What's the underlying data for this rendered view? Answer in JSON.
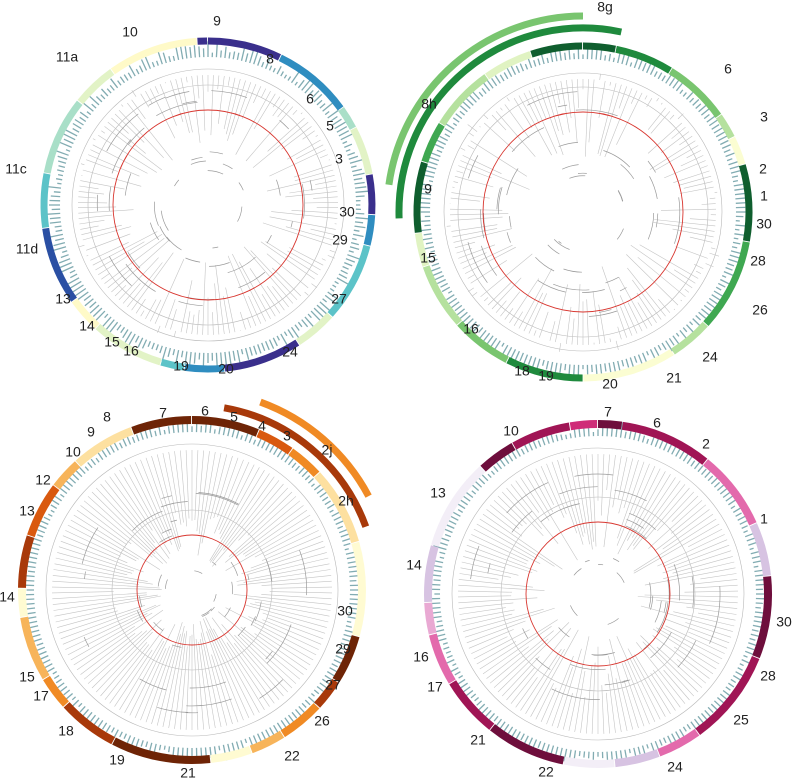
{
  "panels": [
    {
      "id": "top-left",
      "palette": [
        "#3a2f8c",
        "#2a4fa3",
        "#2f8dc0",
        "#5cc3c8",
        "#a9dfc8",
        "#e2f3c6",
        "#fffac8"
      ],
      "labels": [
        {
          "text": "10"
        },
        {
          "text": "9"
        },
        {
          "text": "8"
        },
        {
          "text": "6"
        },
        {
          "text": "5"
        },
        {
          "text": "3"
        },
        {
          "text": "30"
        },
        {
          "text": "29"
        },
        {
          "text": "27"
        },
        {
          "text": "24"
        },
        {
          "text": "20"
        },
        {
          "text": "19"
        },
        {
          "text": "16"
        },
        {
          "text": "15"
        },
        {
          "text": "14"
        },
        {
          "text": "13"
        },
        {
          "text": "11d"
        },
        {
          "text": "11c"
        },
        {
          "text": "11a"
        }
      ]
    },
    {
      "id": "top-right",
      "palette": [
        "#0f5e2e",
        "#1f8a3d",
        "#3fa851",
        "#79c56f",
        "#b5e19e",
        "#e0f3c2",
        "#fbfdd2"
      ],
      "labels": [
        {
          "text": "8g"
        },
        {
          "text": "6"
        },
        {
          "text": "3"
        },
        {
          "text": "2"
        },
        {
          "text": "1"
        },
        {
          "text": "30"
        },
        {
          "text": "28"
        },
        {
          "text": "26"
        },
        {
          "text": "24"
        },
        {
          "text": "21"
        },
        {
          "text": "20"
        },
        {
          "text": "19"
        },
        {
          "text": "18"
        },
        {
          "text": "16"
        },
        {
          "text": "15"
        },
        {
          "text": "9"
        },
        {
          "text": "8h"
        }
      ]
    },
    {
      "id": "bottom-left",
      "palette": [
        "#6e2406",
        "#a8390a",
        "#d9590f",
        "#f08a24",
        "#f7b45a",
        "#fde0a0",
        "#fffbd2"
      ],
      "labels": [
        {
          "text": "8"
        },
        {
          "text": "7"
        },
        {
          "text": "6"
        },
        {
          "text": "5"
        },
        {
          "text": "4"
        },
        {
          "text": "3"
        },
        {
          "text": "2j"
        },
        {
          "text": "2h"
        },
        {
          "text": "30"
        },
        {
          "text": "29"
        },
        {
          "text": "27"
        },
        {
          "text": "26"
        },
        {
          "text": "22"
        },
        {
          "text": "21"
        },
        {
          "text": "19"
        },
        {
          "text": "18"
        },
        {
          "text": "17"
        },
        {
          "text": "15"
        },
        {
          "text": "14"
        },
        {
          "text": "13"
        },
        {
          "text": "12"
        },
        {
          "text": "10"
        },
        {
          "text": "9"
        }
      ]
    },
    {
      "id": "bottom-right",
      "palette": [
        "#6e0e3c",
        "#a01555",
        "#cf2c78",
        "#e36aac",
        "#e9a9d3",
        "#d7c3e2",
        "#f3eef7"
      ],
      "labels": [
        {
          "text": "7"
        },
        {
          "text": "6"
        },
        {
          "text": "2"
        },
        {
          "text": "1"
        },
        {
          "text": "30"
        },
        {
          "text": "28"
        },
        {
          "text": "25"
        },
        {
          "text": "24"
        },
        {
          "text": "22"
        },
        {
          "text": "21"
        },
        {
          "text": "17"
        },
        {
          "text": "16"
        },
        {
          "text": "14"
        },
        {
          "text": "13"
        },
        {
          "text": "10"
        }
      ]
    }
  ]
}
